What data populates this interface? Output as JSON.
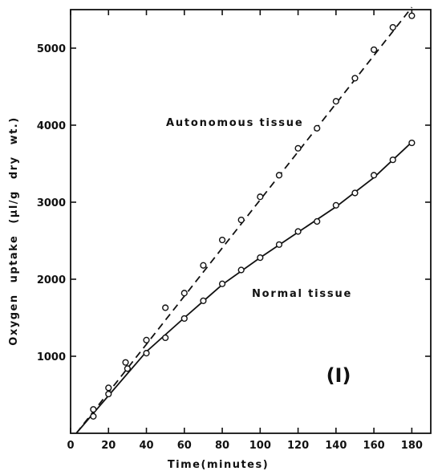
{
  "chart_data": {
    "type": "scatter",
    "title": "",
    "xlabel": "Time(minutes)",
    "ylabel": "Oxygen uptake (µl/g dry wt.)",
    "xlim": [
      0,
      190
    ],
    "ylim": [
      0,
      5500
    ],
    "xticks": [
      0,
      20,
      40,
      60,
      80,
      100,
      120,
      140,
      160,
      180
    ],
    "yticks": [
      1000,
      2000,
      3000,
      4000,
      5000
    ],
    "grid": false,
    "legend": "none",
    "panel_label": "(I)",
    "series": [
      {
        "label": "Autonomous tissue",
        "line_style": "dashed",
        "marker": "open-circle",
        "points": [
          {
            "x": 12,
            "y": 310
          },
          {
            "x": 20,
            "y": 590
          },
          {
            "x": 29,
            "y": 920
          },
          {
            "x": 40,
            "y": 1210
          },
          {
            "x": 50,
            "y": 1630
          },
          {
            "x": 60,
            "y": 1820
          },
          {
            "x": 70,
            "y": 2180
          },
          {
            "x": 80,
            "y": 2510
          },
          {
            "x": 90,
            "y": 2770
          },
          {
            "x": 100,
            "y": 3070
          },
          {
            "x": 110,
            "y": 3350
          },
          {
            "x": 120,
            "y": 3700
          },
          {
            "x": 130,
            "y": 3960
          },
          {
            "x": 140,
            "y": 4310
          },
          {
            "x": 150,
            "y": 4610
          },
          {
            "x": 160,
            "y": 4980
          },
          {
            "x": 170,
            "y": 5270
          },
          {
            "x": 180,
            "y": 5420
          }
        ],
        "fit_line": [
          {
            "x": 3,
            "y": 0
          },
          {
            "x": 180,
            "y": 5530
          }
        ]
      },
      {
        "label": "Normal tissue",
        "line_style": "solid",
        "marker": "open-circle",
        "points": [
          {
            "x": 12,
            "y": 220
          },
          {
            "x": 20,
            "y": 510
          },
          {
            "x": 30,
            "y": 840
          },
          {
            "x": 40,
            "y": 1040
          },
          {
            "x": 50,
            "y": 1240
          },
          {
            "x": 60,
            "y": 1490
          },
          {
            "x": 70,
            "y": 1720
          },
          {
            "x": 80,
            "y": 1940
          },
          {
            "x": 90,
            "y": 2120
          },
          {
            "x": 100,
            "y": 2280
          },
          {
            "x": 110,
            "y": 2450
          },
          {
            "x": 120,
            "y": 2620
          },
          {
            "x": 130,
            "y": 2750
          },
          {
            "x": 140,
            "y": 2960
          },
          {
            "x": 150,
            "y": 3120
          },
          {
            "x": 160,
            "y": 3350
          },
          {
            "x": 170,
            "y": 3550
          },
          {
            "x": 180,
            "y": 3770
          }
        ],
        "fit_line": [
          {
            "x": 3,
            "y": 0
          },
          {
            "x": 20,
            "y": 490
          },
          {
            "x": 40,
            "y": 1060
          },
          {
            "x": 60,
            "y": 1500
          },
          {
            "x": 80,
            "y": 1930
          },
          {
            "x": 100,
            "y": 2280
          },
          {
            "x": 120,
            "y": 2610
          },
          {
            "x": 140,
            "y": 2940
          },
          {
            "x": 160,
            "y": 3320
          },
          {
            "x": 180,
            "y": 3780
          }
        ]
      }
    ]
  }
}
